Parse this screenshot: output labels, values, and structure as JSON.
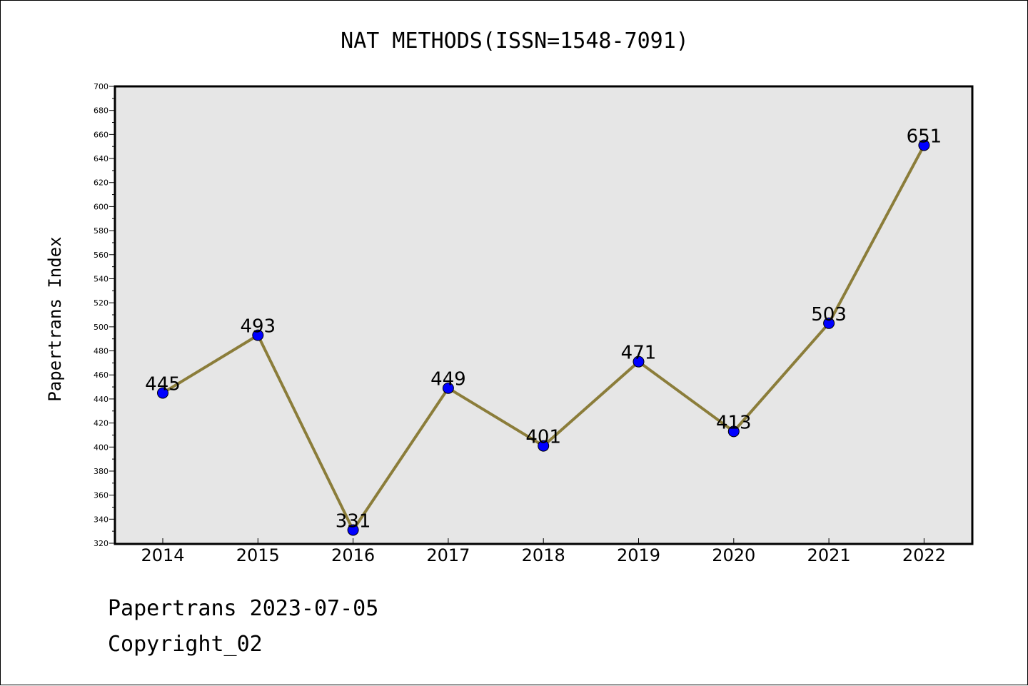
{
  "chart_data": {
    "type": "line",
    "title": "NAT METHODS(ISSN=1548-7091)",
    "xlabel": "",
    "ylabel": "Papertrans Index",
    "categories": [
      "2014",
      "2015",
      "2016",
      "2017",
      "2018",
      "2019",
      "2020",
      "2021",
      "2022"
    ],
    "series": [
      {
        "values": [
          445,
          493,
          331,
          449,
          401,
          471,
          413,
          503,
          651
        ]
      }
    ],
    "data_labels": [
      "445",
      "493",
      "331",
      "449",
      "401",
      "471",
      "413",
      "503",
      "651"
    ],
    "ylim": [
      320,
      700
    ],
    "yticks": [
      320,
      340,
      360,
      380,
      400,
      420,
      440,
      460,
      480,
      500,
      520,
      540,
      560,
      580,
      600,
      620,
      640,
      660,
      680,
      700
    ],
    "grid": false,
    "colors": {
      "line": "#8B7D3A",
      "marker": "#0000FF",
      "plot_background": "#E6E6E6"
    }
  },
  "footer": {
    "line1": "Papertrans 2023-07-05",
    "line2": "Copyright_02"
  }
}
